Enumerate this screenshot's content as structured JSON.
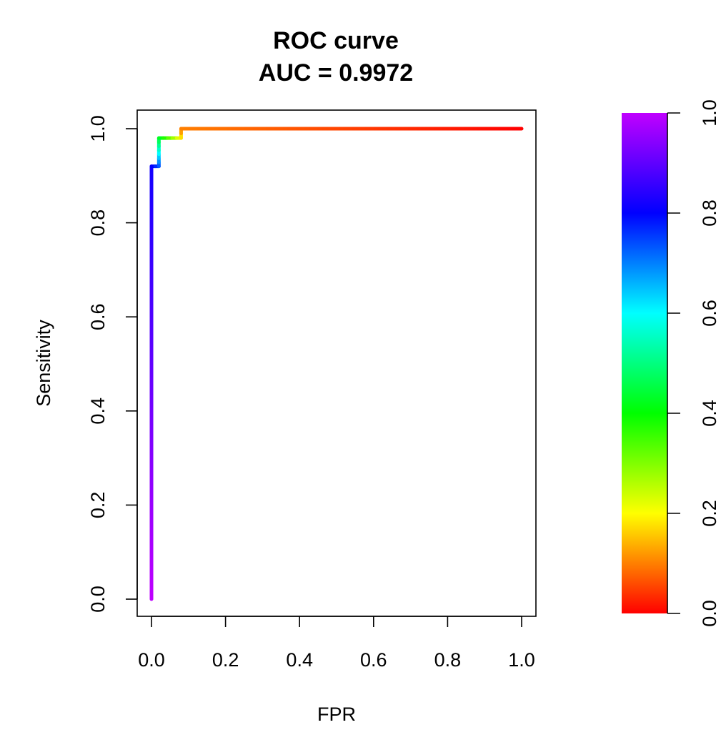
{
  "chart_data": {
    "type": "line",
    "title": "ROC curve",
    "subtitle": "AUC = 0.9972",
    "xlabel": "FPR",
    "ylabel": "Sensitivity",
    "xlim": [
      0,
      1
    ],
    "ylim": [
      0,
      1
    ],
    "x_ticks": [
      "0.0",
      "0.2",
      "0.4",
      "0.6",
      "0.8",
      "1.0"
    ],
    "y_ticks": [
      "0.0",
      "0.2",
      "0.4",
      "0.6",
      "0.8",
      "1.0"
    ],
    "grid": false,
    "legend": "none",
    "series": [
      {
        "x": [
          0.0,
          0.0,
          0.02,
          0.02,
          0.08,
          0.08,
          1.0
        ],
        "y": [
          0.0,
          0.92,
          0.92,
          0.98,
          0.98,
          1.0,
          1.0
        ],
        "threshold": [
          1.0,
          0.82,
          0.75,
          0.45,
          0.2,
          0.1,
          0.0
        ]
      }
    ],
    "colorbar": {
      "range": [
        0,
        1
      ],
      "ticks": [
        "0.0",
        "0.2",
        "0.4",
        "0.6",
        "0.8",
        "1.0"
      ],
      "palette": "rainbow red-to-purple",
      "colors": [
        "#ff0000",
        "#ffff00",
        "#00ff00",
        "#00ffff",
        "#0000ff",
        "#c000ff"
      ]
    }
  }
}
